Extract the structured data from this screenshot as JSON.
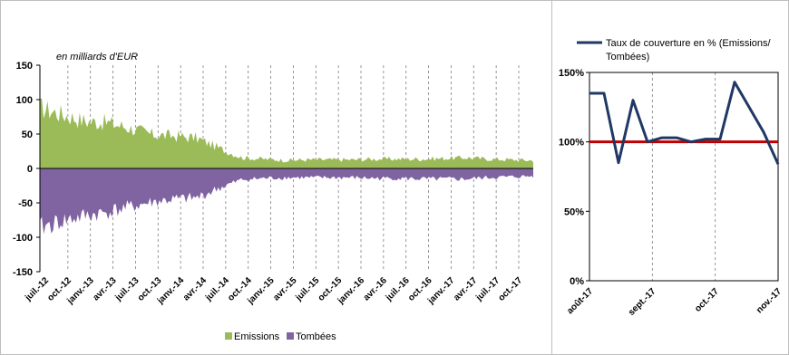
{
  "chart_data": [
    {
      "type": "area",
      "unit_note": "en milliards d'EUR",
      "ylim": [
        -150,
        150
      ],
      "yticks": [
        -150,
        -100,
        -50,
        0,
        50,
        100,
        150
      ],
      "grid": "vertical dashed",
      "x_tick_labels": [
        "juil.-12",
        "oct.-12",
        "janv.-13",
        "avr.-13",
        "juil.-13",
        "oct.-13",
        "janv.-14",
        "avr.-14",
        "juil.-14",
        "oct.-14",
        "janv.-15",
        "avr.-15",
        "juil.-15",
        "oct.-15",
        "janv.-16",
        "avr.-16",
        "juil.-16",
        "oct.-16",
        "janv.-17",
        "avr.-17",
        "juil.-17",
        "oct.-17"
      ],
      "legend_position": "bottom",
      "series": [
        {
          "name": "Emissions",
          "color": "#9bbb59",
          "x": [
            "juil.-12",
            "oct.-12",
            "janv.-13",
            "avr.-13",
            "juil.-13",
            "oct.-13",
            "janv.-14",
            "avr.-14",
            "juil.-14",
            "oct.-14",
            "janv.-15",
            "avr.-15",
            "juil.-15",
            "oct.-15",
            "janv.-16",
            "avr.-16",
            "juil.-16",
            "oct.-16",
            "janv.-17",
            "avr.-17",
            "juil.-17",
            "oct.-17",
            "nov.-17"
          ],
          "values": [
            90,
            80,
            70,
            68,
            60,
            50,
            48,
            45,
            30,
            16,
            14,
            12,
            13,
            13,
            13,
            14,
            14,
            14,
            15,
            16,
            14,
            13,
            12
          ]
        },
        {
          "name": "Tombées",
          "color": "#8064a2",
          "x": [
            "juil.-12",
            "oct.-12",
            "janv.-13",
            "avr.-13",
            "juil.-13",
            "oct.-13",
            "janv.-14",
            "avr.-14",
            "juil.-14",
            "oct.-14",
            "janv.-15",
            "avr.-15",
            "juil.-15",
            "oct.-15",
            "janv.-16",
            "avr.-16",
            "juil.-16",
            "oct.-16",
            "janv.-17",
            "avr.-17",
            "juil.-17",
            "oct.-17",
            "nov.-17"
          ],
          "values": [
            -85,
            -75,
            -68,
            -62,
            -55,
            -48,
            -44,
            -42,
            -28,
            -16,
            -14,
            -13,
            -13,
            -13,
            -13,
            -14,
            -14,
            -15,
            -15,
            -15,
            -13,
            -12,
            -11
          ]
        }
      ]
    },
    {
      "type": "line",
      "ylim": [
        0,
        150
      ],
      "yticks": [
        "0%",
        "50%",
        "100%",
        "150%"
      ],
      "x_tick_labels": [
        "août-17",
        "sept.-17",
        "oct.-17",
        "nov.-17"
      ],
      "legend_position": "top",
      "series": [
        {
          "name": "Taux de couverture en % (Emissions/ Tombées)",
          "color": "#1f3864",
          "values": [
            135,
            135,
            85,
            130,
            100,
            103,
            103,
            100,
            102,
            102,
            143,
            125,
            107,
            84
          ]
        }
      ],
      "reference_line": {
        "value": 100,
        "color": "#c00000"
      }
    }
  ]
}
